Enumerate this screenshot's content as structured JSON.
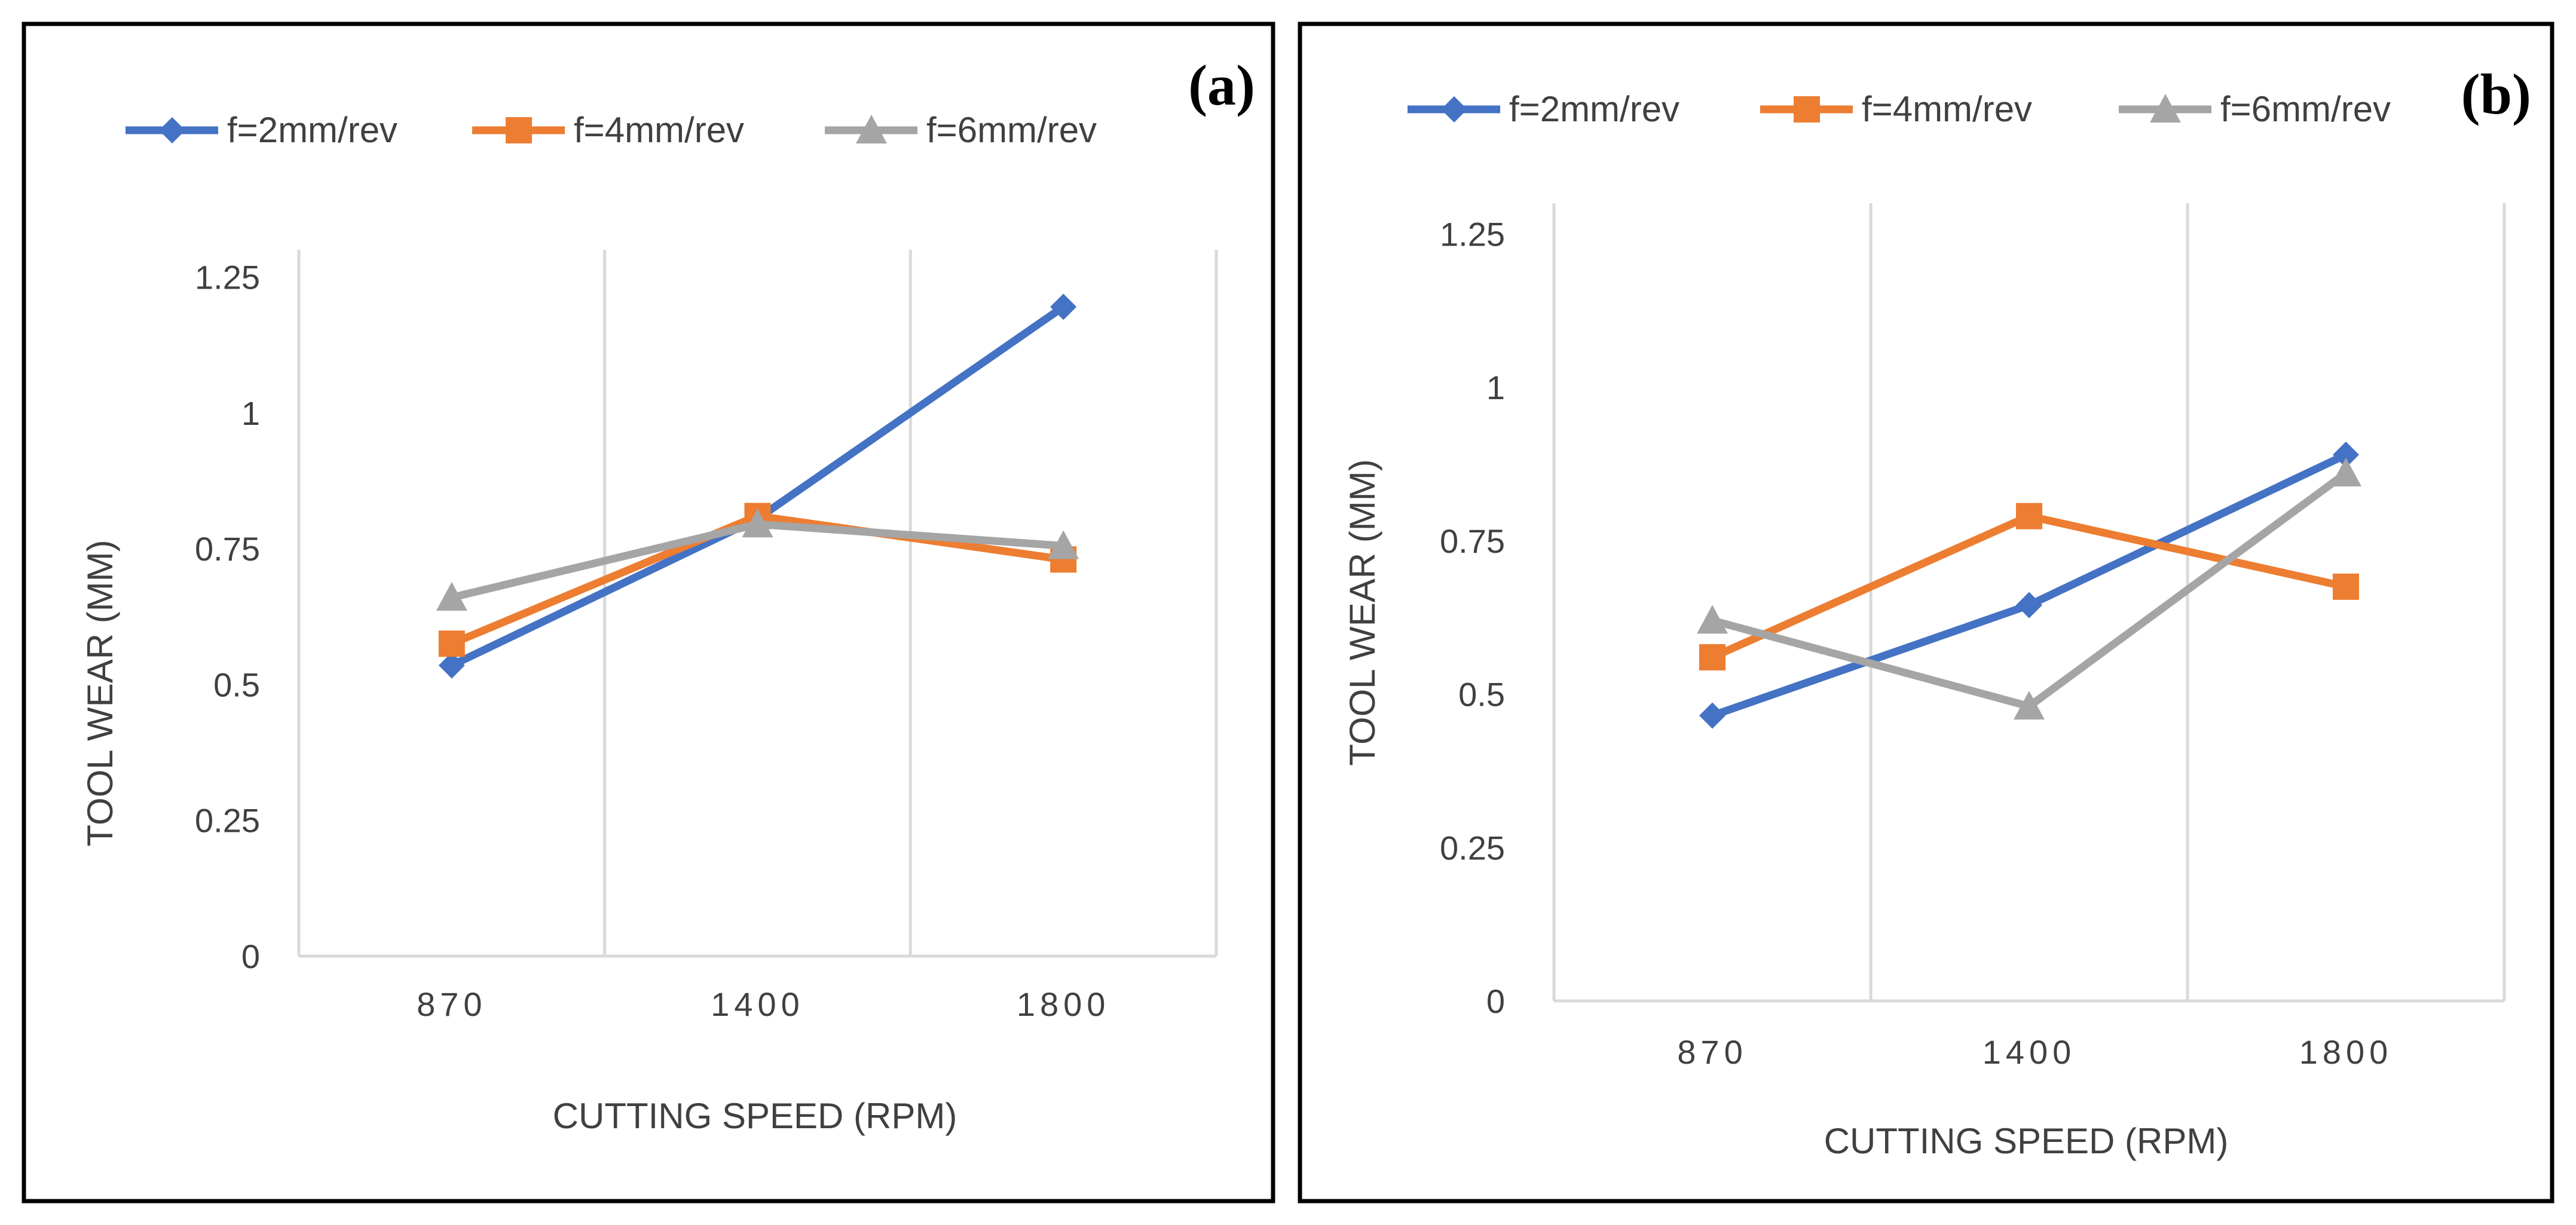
{
  "colors": {
    "f2": "#4472C4",
    "f4": "#ED7D31",
    "f6": "#A5A5A5",
    "grid": "#D9D9D9",
    "frame": "#000000"
  },
  "chart_data": [
    {
      "type": "line",
      "panel_label": "(a)",
      "xlabel": "CUTTING SPEED (RPM)",
      "ylabel": "TOOL WEAR (MM)",
      "categories": [
        "870",
        "1400",
        "1800"
      ],
      "ylim": [
        0,
        1.3
      ],
      "yticks": [
        "0",
        "0.25",
        "0.5",
        "0.75",
        "1",
        "1.25"
      ],
      "ytick_values": [
        0,
        0.25,
        0.5,
        0.75,
        1,
        1.25
      ],
      "legend_position": "top",
      "series": [
        {
          "name": "f=2mm/rev",
          "marker": "diamond",
          "values": [
            0.535,
            0.805,
            1.195
          ]
        },
        {
          "name": "f=4mm/rev",
          "marker": "square",
          "values": [
            0.575,
            0.81,
            0.73
          ]
        },
        {
          "name": "f=6mm/rev",
          "marker": "triangle",
          "values": [
            0.66,
            0.795,
            0.755
          ]
        }
      ]
    },
    {
      "type": "line",
      "panel_label": "(b)",
      "xlabel": "CUTTING SPEED (RPM)",
      "ylabel": "TOOL WEAR (MM)",
      "categories": [
        "870",
        "1400",
        "1800"
      ],
      "ylim": [
        0,
        1.3
      ],
      "yticks": [
        "0",
        "0.25",
        "0.5",
        "0.75",
        "1",
        "1.25"
      ],
      "ytick_values": [
        0,
        0.25,
        0.5,
        0.75,
        1,
        1.25
      ],
      "legend_position": "top",
      "series": [
        {
          "name": "f=2mm/rev",
          "marker": "diamond",
          "values": [
            0.465,
            0.645,
            0.89
          ]
        },
        {
          "name": "f=4mm/rev",
          "marker": "square",
          "values": [
            0.56,
            0.79,
            0.675
          ]
        },
        {
          "name": "f=6mm/rev",
          "marker": "triangle",
          "values": [
            0.62,
            0.48,
            0.86
          ]
        }
      ]
    }
  ]
}
